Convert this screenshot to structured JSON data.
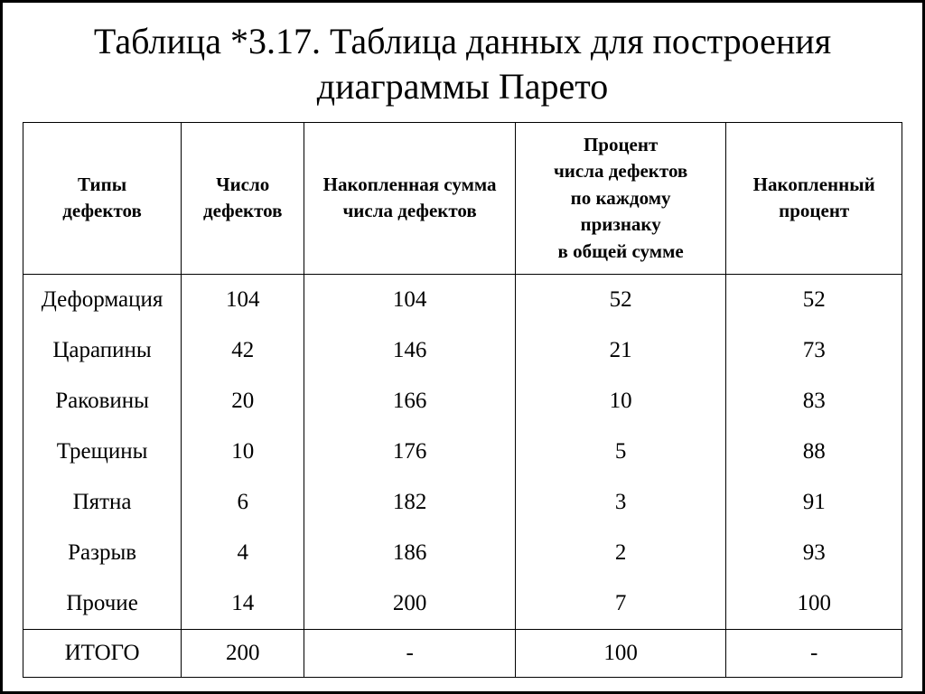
{
  "title": "Таблица *3.17. Таблица данных для построения диаграммы Парето",
  "table": {
    "type": "table",
    "background_color": "#ffffff",
    "border_color": "#000000",
    "text_color": "#000000",
    "header_fontsize_pt": 16,
    "body_fontsize_pt": 19,
    "title_fontsize_pt": 30,
    "column_widths_pct": [
      18,
      14,
      24,
      24,
      20
    ],
    "columns": [
      "Типы\nдефектов",
      "Число\nдефектов",
      "Накопленная сумма\nчисла  дефектов",
      "Процент\nчисла дефектов\nпо каждому\nпризнаку\nв общей сумме",
      "Накопленный\nпроцент"
    ],
    "rows": [
      [
        "Деформация",
        "104",
        "104",
        "52",
        "52"
      ],
      [
        "Царапины",
        "42",
        "146",
        "21",
        "73"
      ],
      [
        "Раковины",
        "20",
        "166",
        "10",
        "83"
      ],
      [
        "Трещины",
        "10",
        "176",
        "5",
        "88"
      ],
      [
        "Пятна",
        "6",
        "182",
        "3",
        "91"
      ],
      [
        "Разрыв",
        "4",
        "186",
        "2",
        "93"
      ],
      [
        "Прочие",
        "14",
        "200",
        "7",
        "100"
      ]
    ],
    "footer": [
      "ИТОГО",
      "200",
      "-",
      "100",
      "-"
    ]
  }
}
